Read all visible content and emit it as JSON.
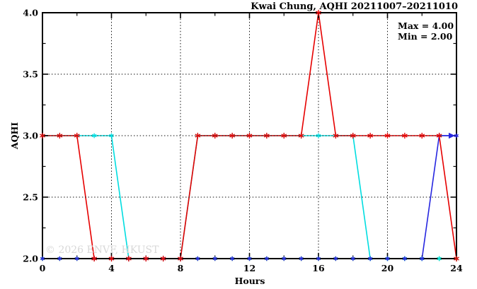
{
  "chart_data": {
    "type": "line",
    "title": "Kwai Chung, AQHI 20211007–20211010",
    "xlabel": "Hours",
    "ylabel": "AQHI",
    "xlim": [
      0,
      24
    ],
    "ylim": [
      2.0,
      4.0
    ],
    "xticks": [
      0,
      4,
      8,
      12,
      16,
      20,
      24
    ],
    "xtick_labels": [
      "0",
      "4",
      "8",
      "12",
      "16",
      "20",
      "24"
    ],
    "xtick_minor_step": 2,
    "yticks": [
      2.0,
      2.5,
      3.0,
      3.5,
      4.0
    ],
    "ytick_labels": [
      "2.0",
      "2.5",
      "3.0",
      "3.5",
      "4.0"
    ],
    "ytick_minor_step": 0.25,
    "grid": "dotted-black",
    "legend_position": "none",
    "annotation": {
      "max_label": "Max = 4.00",
      "min_label": "Min = 2.00"
    },
    "watermark": "© 2026 ENVF, HKUST",
    "x": [
      0,
      1,
      2,
      3,
      4,
      5,
      6,
      7,
      8,
      9,
      10,
      11,
      12,
      13,
      14,
      15,
      16,
      17,
      18,
      19,
      20,
      21,
      22,
      23,
      24
    ],
    "series": [
      {
        "name": "series-green",
        "color": "#00c400",
        "marker": "asterisk",
        "marker_size": 3.2,
        "values": [
          2,
          2,
          2,
          2,
          2,
          2,
          2,
          2,
          2,
          2,
          2,
          2,
          2,
          2,
          2,
          2,
          2,
          2,
          2,
          2,
          2,
          2,
          2,
          2,
          2
        ]
      },
      {
        "name": "series-cyan",
        "color": "#00dde0",
        "marker": "asterisk",
        "marker_size": 3.4,
        "values": [
          3,
          3,
          3,
          3,
          3,
          2,
          2,
          2,
          2,
          3,
          3,
          3,
          3,
          3,
          3,
          3,
          3,
          3,
          3,
          2,
          2,
          2,
          2,
          2,
          2
        ]
      },
      {
        "name": "series-blue",
        "color": "#2626e0",
        "marker": "asterisk",
        "marker_size": 3.2,
        "arrow_end": true,
        "values": [
          2,
          2,
          2,
          2,
          2,
          2,
          2,
          2,
          2,
          2,
          2,
          2,
          2,
          2,
          2,
          2,
          2,
          2,
          2,
          2,
          2,
          2,
          2,
          3,
          3
        ]
      },
      {
        "name": "series-red",
        "color": "#e60000",
        "marker": "asterisk",
        "marker_size": 4.1,
        "values": [
          3,
          3,
          3,
          2,
          2,
          2,
          2,
          2,
          2,
          3,
          3,
          3,
          3,
          3,
          3,
          3,
          4,
          3,
          3,
          3,
          3,
          3,
          3,
          3,
          2
        ]
      }
    ],
    "stats": {
      "max": "4.00",
      "min": "2.00"
    }
  }
}
